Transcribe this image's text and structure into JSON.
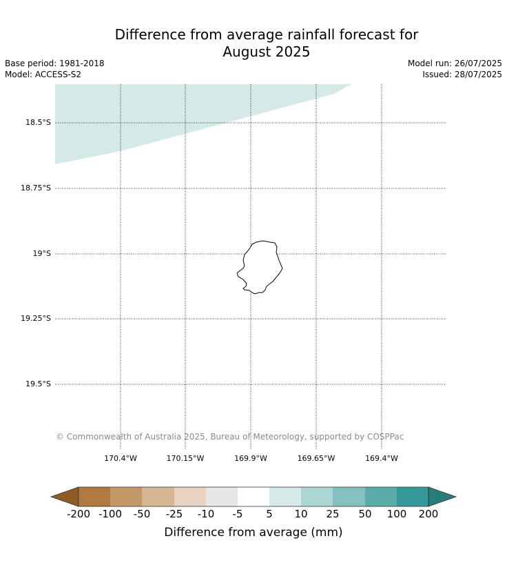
{
  "header": {
    "title_line1": "Difference from average rainfall forecast for",
    "title_line2": "August 2025",
    "base_period": "Base period: 1981-2018",
    "model": "Model: ACCESS-S2",
    "model_run": "Model run: 26/07/2025",
    "issued": "Issued: 28/07/2025"
  },
  "map": {
    "lat_labels": [
      "18.5°S",
      "18.75°S",
      "19°S",
      "19.25°S",
      "19.5°S"
    ],
    "lon_labels": [
      "170.4°W",
      "170.15°W",
      "169.9°W",
      "169.65°W",
      "169.4°W"
    ],
    "shaded_category": "5 to 10",
    "shaded_color": "#d4e9e8",
    "island_outline_color": "#000000",
    "copyright": "© Commonwealth of Australia 2025, Bureau of Meteorology, supported by COSPPac"
  },
  "colorbar": {
    "title": "Difference from average (mm)",
    "tick_labels": [
      "-200",
      "-100",
      "-50",
      "-25",
      "-10",
      "-5",
      "5",
      "10",
      "25",
      "50",
      "100",
      "200"
    ],
    "colors": [
      "#8e5a26",
      "#b07a42",
      "#c39869",
      "#d6b593",
      "#e9d2bf",
      "#e7e7e6",
      "#ffffff",
      "#d4e9e8",
      "#acd6d4",
      "#85c1c0",
      "#5aacaa",
      "#35999a",
      "#287d7b"
    ]
  }
}
